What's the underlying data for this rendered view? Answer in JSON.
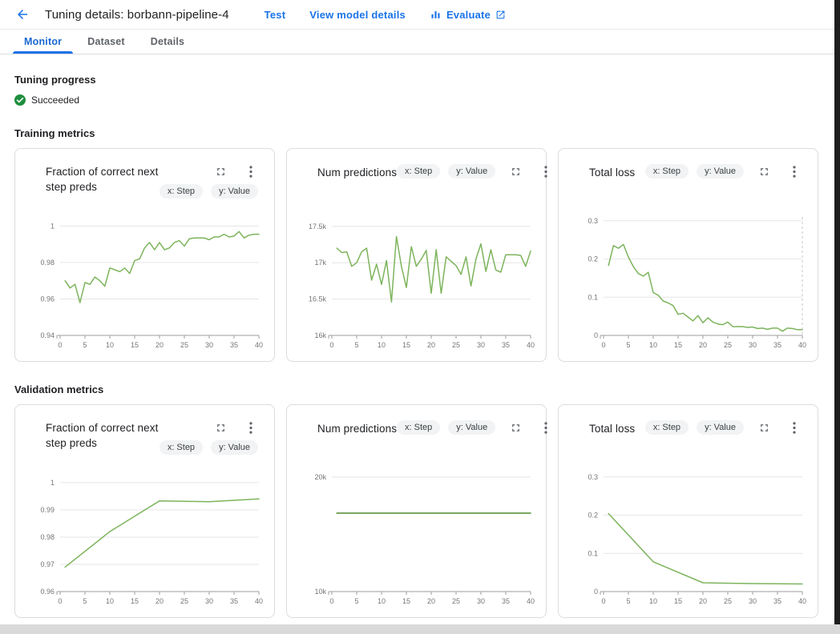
{
  "header": {
    "title": "Tuning details: borbann-pipeline-4",
    "actions": {
      "test": "Test",
      "view_model": "View model details",
      "evaluate": "Evaluate"
    }
  },
  "tabs": [
    {
      "label": "Monitor",
      "active": true
    },
    {
      "label": "Dataset",
      "active": false
    },
    {
      "label": "Details",
      "active": false
    }
  ],
  "tuning_progress": {
    "heading": "Tuning progress",
    "status": "Succeeded"
  },
  "sections": {
    "training": "Training metrics",
    "validation": "Validation metrics"
  },
  "chips": {
    "x_label": "x: Step",
    "y_label": "y: Value"
  },
  "colors": {
    "link": "#1a73e8",
    "active_tab": "#1967d2",
    "success": "#1e8e3e",
    "line_green": "#7db45c",
    "line_green_dark": "#4e8c2f",
    "grid": "#e6e6e6",
    "axis": "#9e9e9e",
    "tick_text": "#757575"
  },
  "chart_data": [
    {
      "type": "line",
      "section": "training",
      "title": "Fraction of correct next step preds",
      "xlabel": "Step",
      "ylabel": "Value",
      "xlim": [
        0,
        40
      ],
      "ylim": [
        0.94,
        1.005
      ],
      "x_ticks": [
        0,
        5,
        10,
        15,
        20,
        25,
        30,
        35,
        40
      ],
      "y_ticks": [
        {
          "v": 0.94,
          "label": "0.94"
        },
        {
          "v": 0.96,
          "label": "0.96"
        },
        {
          "v": 0.98,
          "label": "0.98"
        },
        {
          "v": 1,
          "label": "1"
        }
      ],
      "x": [
        1,
        2,
        3,
        4,
        5,
        6,
        7,
        8,
        9,
        10,
        11,
        12,
        13,
        14,
        15,
        16,
        17,
        18,
        19,
        20,
        21,
        22,
        23,
        24,
        25,
        26,
        27,
        28,
        29,
        30,
        31,
        32,
        33,
        34,
        35,
        36,
        37,
        38,
        39,
        40
      ],
      "values": [
        0.97,
        0.966,
        0.968,
        0.958,
        0.969,
        0.968,
        0.972,
        0.97,
        0.967,
        0.977,
        0.976,
        0.975,
        0.977,
        0.974,
        0.981,
        0.982,
        0.988,
        0.991,
        0.987,
        0.991,
        0.987,
        0.988,
        0.991,
        0.992,
        0.989,
        0.993,
        0.9935,
        0.9935,
        0.9935,
        0.9925,
        0.994,
        0.994,
        0.9955,
        0.994,
        0.9945,
        0.997,
        0.9935,
        0.995,
        0.9955,
        0.9955
      ],
      "line_color": "#7db45c",
      "grid": true
    },
    {
      "type": "line",
      "section": "training",
      "title": "Num predictions",
      "xlabel": "Step",
      "ylabel": "Value",
      "xlim": [
        0,
        40
      ],
      "ylim": [
        16000,
        17630
      ],
      "x_ticks": [
        0,
        5,
        10,
        15,
        20,
        25,
        30,
        35,
        40
      ],
      "y_ticks": [
        {
          "v": 16000,
          "label": "16k"
        },
        {
          "v": 16500,
          "label": "16.5k"
        },
        {
          "v": 17000,
          "label": "17k"
        },
        {
          "v": 17500,
          "label": "17.5k"
        }
      ],
      "x": [
        1,
        2,
        3,
        4,
        5,
        6,
        7,
        8,
        9,
        10,
        11,
        12,
        13,
        14,
        15,
        16,
        17,
        18,
        19,
        20,
        21,
        22,
        23,
        24,
        25,
        26,
        27,
        28,
        29,
        30,
        31,
        32,
        33,
        34,
        35,
        36,
        37,
        38,
        39,
        40
      ],
      "values": [
        17200,
        17140,
        17150,
        16950,
        17000,
        17150,
        17200,
        16760,
        16980,
        16700,
        17030,
        16460,
        17360,
        16950,
        16660,
        17220,
        16950,
        17050,
        17170,
        16580,
        17180,
        16580,
        17080,
        17020,
        16960,
        16840,
        17080,
        16680,
        17050,
        17260,
        16880,
        17180,
        16900,
        16870,
        17110,
        17110,
        17110,
        17100,
        16950,
        17160
      ],
      "line_color": "#7db45c",
      "grid": true
    },
    {
      "type": "line",
      "section": "training",
      "title": "Total loss",
      "xlabel": "Step",
      "ylabel": "Value",
      "xlim": [
        0,
        40
      ],
      "ylim": [
        0,
        0.31
      ],
      "x_ticks": [
        0,
        5,
        10,
        15,
        20,
        25,
        30,
        35,
        40
      ],
      "y_ticks": [
        {
          "v": 0,
          "label": "0"
        },
        {
          "v": 0.1,
          "label": "0.1"
        },
        {
          "v": 0.2,
          "label": "0.2"
        },
        {
          "v": 0.3,
          "label": "0.3"
        }
      ],
      "x": [
        1,
        2,
        3,
        4,
        5,
        6,
        7,
        8,
        9,
        10,
        11,
        12,
        13,
        14,
        15,
        16,
        17,
        18,
        19,
        20,
        21,
        22,
        23,
        24,
        25,
        26,
        27,
        28,
        29,
        30,
        31,
        32,
        33,
        34,
        35,
        36,
        37,
        38,
        39,
        40
      ],
      "values": [
        0.183,
        0.235,
        0.228,
        0.238,
        0.205,
        0.18,
        0.162,
        0.155,
        0.165,
        0.112,
        0.105,
        0.09,
        0.085,
        0.078,
        0.055,
        0.058,
        0.048,
        0.038,
        0.052,
        0.033,
        0.046,
        0.035,
        0.03,
        0.028,
        0.035,
        0.023,
        0.023,
        0.023,
        0.021,
        0.022,
        0.018,
        0.019,
        0.016,
        0.019,
        0.019,
        0.011,
        0.019,
        0.018,
        0.015,
        0.015
      ],
      "vline_x": 40,
      "line_color": "#7db45c",
      "grid": true
    },
    {
      "type": "line",
      "section": "validation",
      "title": "Fraction of correct next step preds",
      "xlabel": "Step",
      "ylabel": "Value",
      "xlim": [
        0,
        40
      ],
      "ylim": [
        0.96,
        1.0035
      ],
      "x_ticks": [
        0,
        5,
        10,
        15,
        20,
        25,
        30,
        35,
        40
      ],
      "y_ticks": [
        {
          "v": 0.96,
          "label": "0.96"
        },
        {
          "v": 0.97,
          "label": "0.97"
        },
        {
          "v": 0.98,
          "label": "0.98"
        },
        {
          "v": 0.99,
          "label": "0.99"
        },
        {
          "v": 1,
          "label": "1"
        }
      ],
      "x": [
        1,
        10,
        20,
        30,
        40
      ],
      "values": [
        0.969,
        0.982,
        0.9933,
        0.993,
        0.994
      ],
      "line_color": "#7db45c",
      "grid": true
    },
    {
      "type": "line",
      "section": "validation",
      "title": "Num predictions",
      "xlabel": "Step",
      "ylabel": "Value",
      "xlim": [
        0,
        40
      ],
      "ylim": [
        10000,
        20350
      ],
      "x_ticks": [
        0,
        5,
        10,
        15,
        20,
        25,
        30,
        35,
        40
      ],
      "y_ticks": [
        {
          "v": 10000,
          "label": "10k"
        },
        {
          "v": 20000,
          "label": "20k"
        }
      ],
      "x": [
        1,
        10,
        20,
        30,
        40
      ],
      "values": [
        16850,
        16850,
        16850,
        16850,
        16850
      ],
      "line_color": "#4e8c2f",
      "grid": true
    },
    {
      "type": "line",
      "section": "validation",
      "title": "Total loss",
      "xlabel": "Step",
      "ylabel": "Value",
      "xlim": [
        0,
        40
      ],
      "ylim": [
        0,
        0.31
      ],
      "x_ticks": [
        0,
        5,
        10,
        15,
        20,
        25,
        30,
        35,
        40
      ],
      "y_ticks": [
        {
          "v": 0,
          "label": "0"
        },
        {
          "v": 0.1,
          "label": "0.1"
        },
        {
          "v": 0.2,
          "label": "0.2"
        },
        {
          "v": 0.3,
          "label": "0.3"
        }
      ],
      "x": [
        1,
        10,
        20,
        30,
        40
      ],
      "values": [
        0.204,
        0.078,
        0.023,
        0.021,
        0.02
      ],
      "line_color": "#7db45c",
      "grid": true
    }
  ]
}
